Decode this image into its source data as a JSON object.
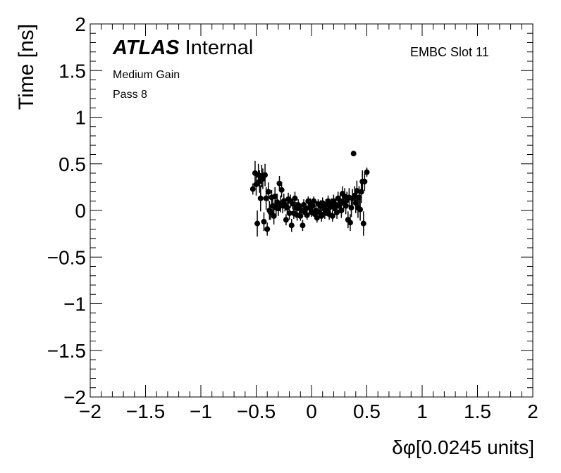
{
  "header": {
    "atlas_label": "ATLAS",
    "internal_label": "Internal",
    "slot_label": "EMBC Slot 11",
    "gain_label": "Medium Gain",
    "pass_label": "Pass 8"
  },
  "chart_data": {
    "type": "scatter",
    "title": "",
    "xlabel": "δφ[0.0245 units]",
    "ylabel": "Time [ns]",
    "xlim": [
      -2,
      2
    ],
    "ylim": [
      -2,
      2
    ],
    "xticks": [
      "−2",
      "−1.5",
      "−1",
      "−0.5",
      "0",
      "0.5",
      "1",
      "1.5",
      "2"
    ],
    "yticks": [
      "−2",
      "−1.5",
      "−1",
      "−0.5",
      "0",
      "0.5",
      "1",
      "1.5",
      "2"
    ],
    "grid": false,
    "marker_color": "#000000",
    "error_bars": true,
    "points": [
      {
        "x": -0.53,
        "y": 0.23,
        "err": 0.06
      },
      {
        "x": -0.51,
        "y": 0.4,
        "err": 0.13
      },
      {
        "x": -0.5,
        "y": 0.28,
        "err": 0.12
      },
      {
        "x": -0.49,
        "y": -0.14,
        "err": 0.14
      },
      {
        "x": -0.48,
        "y": 0.38,
        "err": 0.12
      },
      {
        "x": -0.47,
        "y": 0.31,
        "err": 0.12
      },
      {
        "x": -0.46,
        "y": 0.13,
        "err": 0.14
      },
      {
        "x": -0.45,
        "y": 0.37,
        "err": 0.12
      },
      {
        "x": -0.44,
        "y": 0.34,
        "err": 0.11
      },
      {
        "x": -0.43,
        "y": -0.12,
        "err": 0.1
      },
      {
        "x": -0.42,
        "y": 0.38,
        "err": 0.12
      },
      {
        "x": -0.41,
        "y": 0.13,
        "err": 0.12
      },
      {
        "x": -0.4,
        "y": -0.2,
        "err": 0.07
      },
      {
        "x": -0.39,
        "y": 0.2,
        "err": 0.1
      },
      {
        "x": -0.38,
        "y": 0.0,
        "err": 0.1
      },
      {
        "x": -0.37,
        "y": -0.02,
        "err": 0.08
      },
      {
        "x": -0.36,
        "y": 0.14,
        "err": 0.08
      },
      {
        "x": -0.35,
        "y": 0.05,
        "err": 0.1
      },
      {
        "x": -0.34,
        "y": -0.06,
        "err": 0.09
      },
      {
        "x": -0.33,
        "y": 0.15,
        "err": 0.1
      },
      {
        "x": -0.32,
        "y": 0.03,
        "err": 0.08
      },
      {
        "x": -0.31,
        "y": 0.09,
        "err": 0.09
      },
      {
        "x": -0.3,
        "y": 0.02,
        "err": 0.08
      },
      {
        "x": -0.29,
        "y": 0.29,
        "err": 0.08
      },
      {
        "x": -0.28,
        "y": 0.07,
        "err": 0.09
      },
      {
        "x": -0.27,
        "y": 0.22,
        "err": 0.08
      },
      {
        "x": -0.26,
        "y": 0.05,
        "err": 0.08
      },
      {
        "x": -0.25,
        "y": 0.1,
        "err": 0.08
      },
      {
        "x": -0.24,
        "y": 0.06,
        "err": 0.07
      },
      {
        "x": -0.23,
        "y": -0.1,
        "err": 0.06
      },
      {
        "x": -0.22,
        "y": 0.03,
        "err": 0.06
      },
      {
        "x": -0.21,
        "y": 0.12,
        "err": 0.07
      },
      {
        "x": -0.2,
        "y": -0.03,
        "err": 0.07
      },
      {
        "x": -0.19,
        "y": 0.1,
        "err": 0.07
      },
      {
        "x": -0.18,
        "y": -0.16,
        "err": 0.07
      },
      {
        "x": -0.17,
        "y": 0.07,
        "err": 0.06
      },
      {
        "x": -0.16,
        "y": -0.03,
        "err": 0.06
      },
      {
        "x": -0.15,
        "y": 0.13,
        "err": 0.07
      },
      {
        "x": -0.14,
        "y": 0.03,
        "err": 0.06
      },
      {
        "x": -0.13,
        "y": -0.05,
        "err": 0.06
      },
      {
        "x": -0.12,
        "y": 0.06,
        "err": 0.06
      },
      {
        "x": -0.11,
        "y": 0.02,
        "err": 0.06
      },
      {
        "x": -0.1,
        "y": -0.06,
        "err": 0.05
      },
      {
        "x": -0.09,
        "y": 0.0,
        "err": 0.06
      },
      {
        "x": -0.08,
        "y": -0.16,
        "err": 0.06
      },
      {
        "x": -0.07,
        "y": 0.06,
        "err": 0.06
      },
      {
        "x": -0.06,
        "y": -0.02,
        "err": 0.05
      },
      {
        "x": -0.05,
        "y": 0.02,
        "err": 0.05
      },
      {
        "x": -0.04,
        "y": -0.05,
        "err": 0.05
      },
      {
        "x": -0.03,
        "y": 0.1,
        "err": 0.05
      },
      {
        "x": -0.02,
        "y": 0.03,
        "err": 0.05
      },
      {
        "x": -0.01,
        "y": 0.08,
        "err": 0.05
      },
      {
        "x": 0.0,
        "y": -0.02,
        "err": 0.05
      },
      {
        "x": 0.01,
        "y": 0.05,
        "err": 0.05
      },
      {
        "x": 0.02,
        "y": 0.1,
        "err": 0.05
      },
      {
        "x": 0.03,
        "y": -0.04,
        "err": 0.05
      },
      {
        "x": 0.04,
        "y": 0.0,
        "err": 0.05
      },
      {
        "x": 0.05,
        "y": -0.08,
        "err": 0.05
      },
      {
        "x": 0.06,
        "y": 0.07,
        "err": 0.05
      },
      {
        "x": 0.07,
        "y": -0.02,
        "err": 0.06
      },
      {
        "x": 0.08,
        "y": 0.05,
        "err": 0.06
      },
      {
        "x": 0.09,
        "y": -0.06,
        "err": 0.06
      },
      {
        "x": 0.1,
        "y": 0.08,
        "err": 0.06
      },
      {
        "x": 0.11,
        "y": 0.02,
        "err": 0.06
      },
      {
        "x": 0.12,
        "y": -0.03,
        "err": 0.06
      },
      {
        "x": 0.13,
        "y": 0.06,
        "err": 0.06
      },
      {
        "x": 0.14,
        "y": 0.0,
        "err": 0.06
      },
      {
        "x": 0.15,
        "y": 0.1,
        "err": 0.06
      },
      {
        "x": 0.16,
        "y": -0.04,
        "err": 0.06
      },
      {
        "x": 0.17,
        "y": 0.04,
        "err": 0.06
      },
      {
        "x": 0.18,
        "y": 0.07,
        "err": 0.06
      },
      {
        "x": 0.19,
        "y": -0.06,
        "err": 0.06
      },
      {
        "x": 0.2,
        "y": 0.1,
        "err": 0.07
      },
      {
        "x": 0.21,
        "y": 0.02,
        "err": 0.07
      },
      {
        "x": 0.22,
        "y": 0.06,
        "err": 0.07
      },
      {
        "x": 0.23,
        "y": -0.02,
        "err": 0.07
      },
      {
        "x": 0.24,
        "y": 0.13,
        "err": 0.07
      },
      {
        "x": 0.25,
        "y": 0.05,
        "err": 0.07
      },
      {
        "x": 0.26,
        "y": 0.1,
        "err": 0.08
      },
      {
        "x": 0.27,
        "y": 0.0,
        "err": 0.08
      },
      {
        "x": 0.28,
        "y": 0.18,
        "err": 0.08
      },
      {
        "x": 0.29,
        "y": 0.08,
        "err": 0.08
      },
      {
        "x": 0.3,
        "y": 0.15,
        "err": 0.09
      },
      {
        "x": 0.31,
        "y": 0.05,
        "err": 0.09
      },
      {
        "x": 0.32,
        "y": 0.11,
        "err": 0.09
      },
      {
        "x": 0.33,
        "y": -0.1,
        "err": 0.09
      },
      {
        "x": 0.34,
        "y": 0.14,
        "err": 0.1
      },
      {
        "x": 0.35,
        "y": -0.13,
        "err": 0.09
      },
      {
        "x": 0.36,
        "y": 0.03,
        "err": 0.1
      },
      {
        "x": 0.37,
        "y": 0.13,
        "err": 0.1
      },
      {
        "x": 0.38,
        "y": 0.61,
        "err": 0.02
      },
      {
        "x": 0.39,
        "y": 0.16,
        "err": 0.1
      },
      {
        "x": 0.4,
        "y": 0.08,
        "err": 0.11
      },
      {
        "x": 0.41,
        "y": 0.21,
        "err": 0.11
      },
      {
        "x": 0.42,
        "y": 0.03,
        "err": 0.11
      },
      {
        "x": 0.43,
        "y": 0.14,
        "err": 0.12
      },
      {
        "x": 0.44,
        "y": 0.01,
        "err": 0.12
      },
      {
        "x": 0.45,
        "y": 0.2,
        "err": 0.12
      },
      {
        "x": 0.46,
        "y": 0.31,
        "err": 0.12
      },
      {
        "x": 0.47,
        "y": -0.14,
        "err": 0.13
      },
      {
        "x": 0.48,
        "y": 0.31,
        "err": 0.1
      },
      {
        "x": 0.5,
        "y": 0.41,
        "err": 0.05
      }
    ]
  }
}
